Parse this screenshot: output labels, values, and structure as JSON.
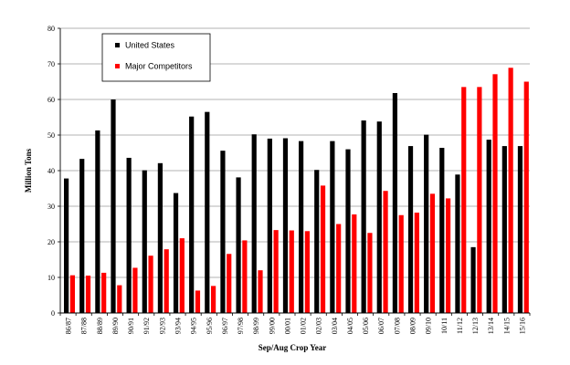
{
  "chart_data": {
    "type": "bar",
    "xlabel": "Sep/Aug Crop Year",
    "ylabel": "Million Tons",
    "ylim": [
      0,
      80
    ],
    "yticks": [
      0,
      10,
      20,
      30,
      40,
      50,
      60,
      70,
      80
    ],
    "grid": "horizontal",
    "legend_position": "top-left",
    "categories": [
      "86/87",
      "87/88",
      "88/89",
      "89/90",
      "90/91",
      "91/92",
      "92/93",
      "93/94",
      "94/95",
      "95/96",
      "96/97",
      "97/98",
      "98/99",
      "99/00",
      "00/01",
      "01/02",
      "02/03",
      "03/04",
      "04/05",
      "05/06",
      "06/07",
      "07/08",
      "08/09",
      "09/10",
      "10/11",
      "11/12",
      "12/13",
      "13/14",
      "14/15",
      "15/16"
    ],
    "series": [
      {
        "name": "United States",
        "color": "#000000",
        "values": [
          37.8,
          43.3,
          51.3,
          60.0,
          43.6,
          40.1,
          42.1,
          33.7,
          55.2,
          56.5,
          45.6,
          38.1,
          50.2,
          49.0,
          49.1,
          48.3,
          40.2,
          48.3,
          46.0,
          54.1,
          53.8,
          61.8,
          46.9,
          50.1,
          46.4,
          38.9,
          18.5,
          48.7,
          46.9,
          46.9
        ]
      },
      {
        "name": "Major Competitors",
        "color": "#ff0000",
        "values": [
          10.6,
          10.5,
          11.3,
          7.8,
          12.7,
          16.1,
          17.9,
          21.0,
          6.3,
          7.6,
          16.6,
          20.4,
          12.0,
          23.3,
          23.2,
          23.0,
          35.8,
          25.0,
          27.7,
          22.5,
          34.3,
          27.5,
          28.2,
          33.5,
          32.2,
          63.5,
          63.5,
          67.1,
          68.9,
          65.0
        ]
      }
    ]
  }
}
